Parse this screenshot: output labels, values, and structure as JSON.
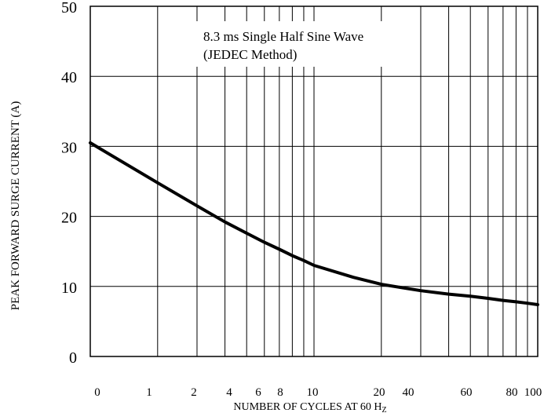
{
  "chart_data": {
    "type": "line",
    "title": "",
    "annotation": [
      "8.3 ms Single Half Sine Wave",
      "(JEDEC Method)"
    ],
    "xlabel": "NUMBER OF CYCLES AT 60 H",
    "xlabel_subscript": "Z",
    "ylabel": "PEAK FORWARD SURGE CURRENT (A)",
    "x_tick_labels": [
      "0",
      "1",
      "2",
      "4",
      "6",
      "8",
      "10",
      "20",
      "40",
      "60",
      "80",
      "100"
    ],
    "y_tick_labels": [
      "0",
      "10",
      "20",
      "30",
      "40",
      "50"
    ],
    "ylim": [
      0,
      50
    ],
    "grid": true,
    "series": [
      {
        "x": [
          1,
          2,
          3,
          4,
          5,
          6,
          7,
          8,
          9,
          10,
          15,
          20,
          30,
          40,
          50,
          60,
          70,
          80,
          90,
          100
        ],
        "values": [
          30.5,
          24.8,
          21.5,
          19.2,
          17.6,
          16.3,
          15.3,
          14.4,
          13.7,
          13.0,
          11.3,
          10.3,
          9.4,
          8.9,
          8.6,
          8.3,
          8.0,
          7.8,
          7.6,
          7.4
        ]
      }
    ]
  }
}
